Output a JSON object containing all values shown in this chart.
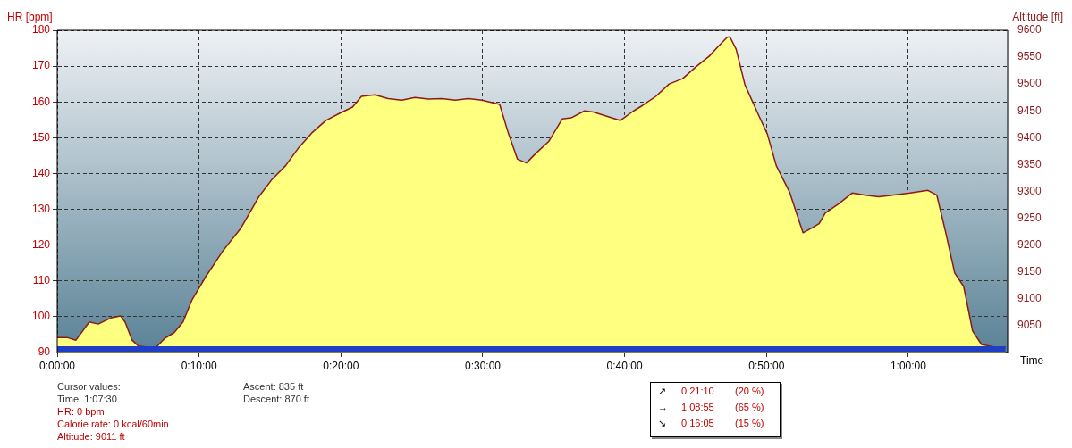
{
  "chart_data": {
    "type": "area",
    "ylabel": "HR [bpm]",
    "y2label": "Altitude [ft]",
    "xlabel": "Time",
    "xlim": [
      0,
      67
    ],
    "xticks": [
      {
        "value": 0,
        "label": "0:00:00"
      },
      {
        "value": 10,
        "label": "0:10:00"
      },
      {
        "value": 20,
        "label": "0:20:00"
      },
      {
        "value": 30,
        "label": "0:30:00"
      },
      {
        "value": 40,
        "label": "0:40:00"
      },
      {
        "value": 50,
        "label": "0:50:00"
      },
      {
        "value": 60,
        "label": "1:00:00"
      }
    ],
    "ylim": [
      90,
      180
    ],
    "yticks": [
      90,
      100,
      110,
      120,
      130,
      140,
      150,
      160,
      170,
      180
    ],
    "y2lim": [
      9000,
      9600
    ],
    "y2ticks": [
      9050,
      9100,
      9150,
      9200,
      9250,
      9300,
      9350,
      9400,
      9450,
      9500,
      9550,
      9600
    ],
    "grid": true,
    "series": [
      {
        "axis": "y2",
        "color": "#ffff80",
        "x": [
          0,
          0.69,
          1.32,
          2.26,
          2.89,
          3.84,
          4.47,
          4.78,
          5.28,
          5.72,
          6.35,
          6.98,
          7.61,
          8.24,
          8.87,
          9.5,
          10.44,
          11.7,
          12.96,
          14.21,
          15.16,
          16.1,
          17.04,
          17.99,
          18.93,
          19.87,
          20.82,
          21.45,
          22.39,
          23.33,
          24.28,
          25.22,
          26.16,
          27.11,
          28.05,
          28.99,
          29.94,
          31.19,
          31.82,
          32.45,
          33.08,
          33.71,
          34.65,
          35.6,
          36.23,
          37.17,
          37.8,
          38.74,
          39.69,
          40.63,
          41.26,
          42.2,
          43.14,
          44.09,
          45.03,
          45.97,
          46.6,
          47.23,
          47.42,
          47.86,
          48.49,
          49.43,
          50.06,
          50.69,
          51.64,
          52.26,
          52.58,
          53.21,
          53.71,
          54.15,
          55.09,
          56.04,
          56.98,
          57.92,
          58.87,
          60.13,
          61.38,
          62.01,
          62.64,
          63.27,
          63.9,
          64.53,
          65.16,
          66.1,
          66.86
        ],
        "values": [
          9028,
          9028,
          9023,
          9057,
          9053,
          9065,
          9068,
          9057,
          9023,
          9012,
          9010,
          9010,
          9027,
          9037,
          9057,
          9098,
          9140,
          9190,
          9232,
          9290,
          9323,
          9348,
          9382,
          9410,
          9432,
          9445,
          9457,
          9477,
          9480,
          9473,
          9470,
          9475,
          9472,
          9473,
          9470,
          9473,
          9470,
          9462,
          9407,
          9360,
          9353,
          9370,
          9393,
          9435,
          9437,
          9450,
          9448,
          9440,
          9432,
          9450,
          9460,
          9477,
          9500,
          9510,
          9532,
          9552,
          9570,
          9587,
          9588,
          9565,
          9498,
          9443,
          9407,
          9348,
          9298,
          9248,
          9223,
          9232,
          9240,
          9260,
          9277,
          9297,
          9293,
          9290,
          9293,
          9297,
          9302,
          9293,
          9223,
          9148,
          9123,
          9040,
          9015,
          9010,
          9010
        ]
      },
      {
        "type": "line",
        "color": "#1e3ec8",
        "x": [
          0,
          66.86
        ],
        "values": [
          91,
          91
        ]
      }
    ],
    "annotations": [
      "Cursor values:",
      "Time: 1:07:30",
      "HR: 0 bpm",
      "Calorie rate: 0 kcal/60min",
      "Altitude: 9011 ft",
      "Ascent: 835 ft",
      "Descent: 870 ft",
      "↗",
      "0:21:10",
      "(20 %)",
      "→",
      "1:08:55",
      "(65 %)",
      "↘",
      "0:16:05",
      "(15 %)"
    ]
  }
}
